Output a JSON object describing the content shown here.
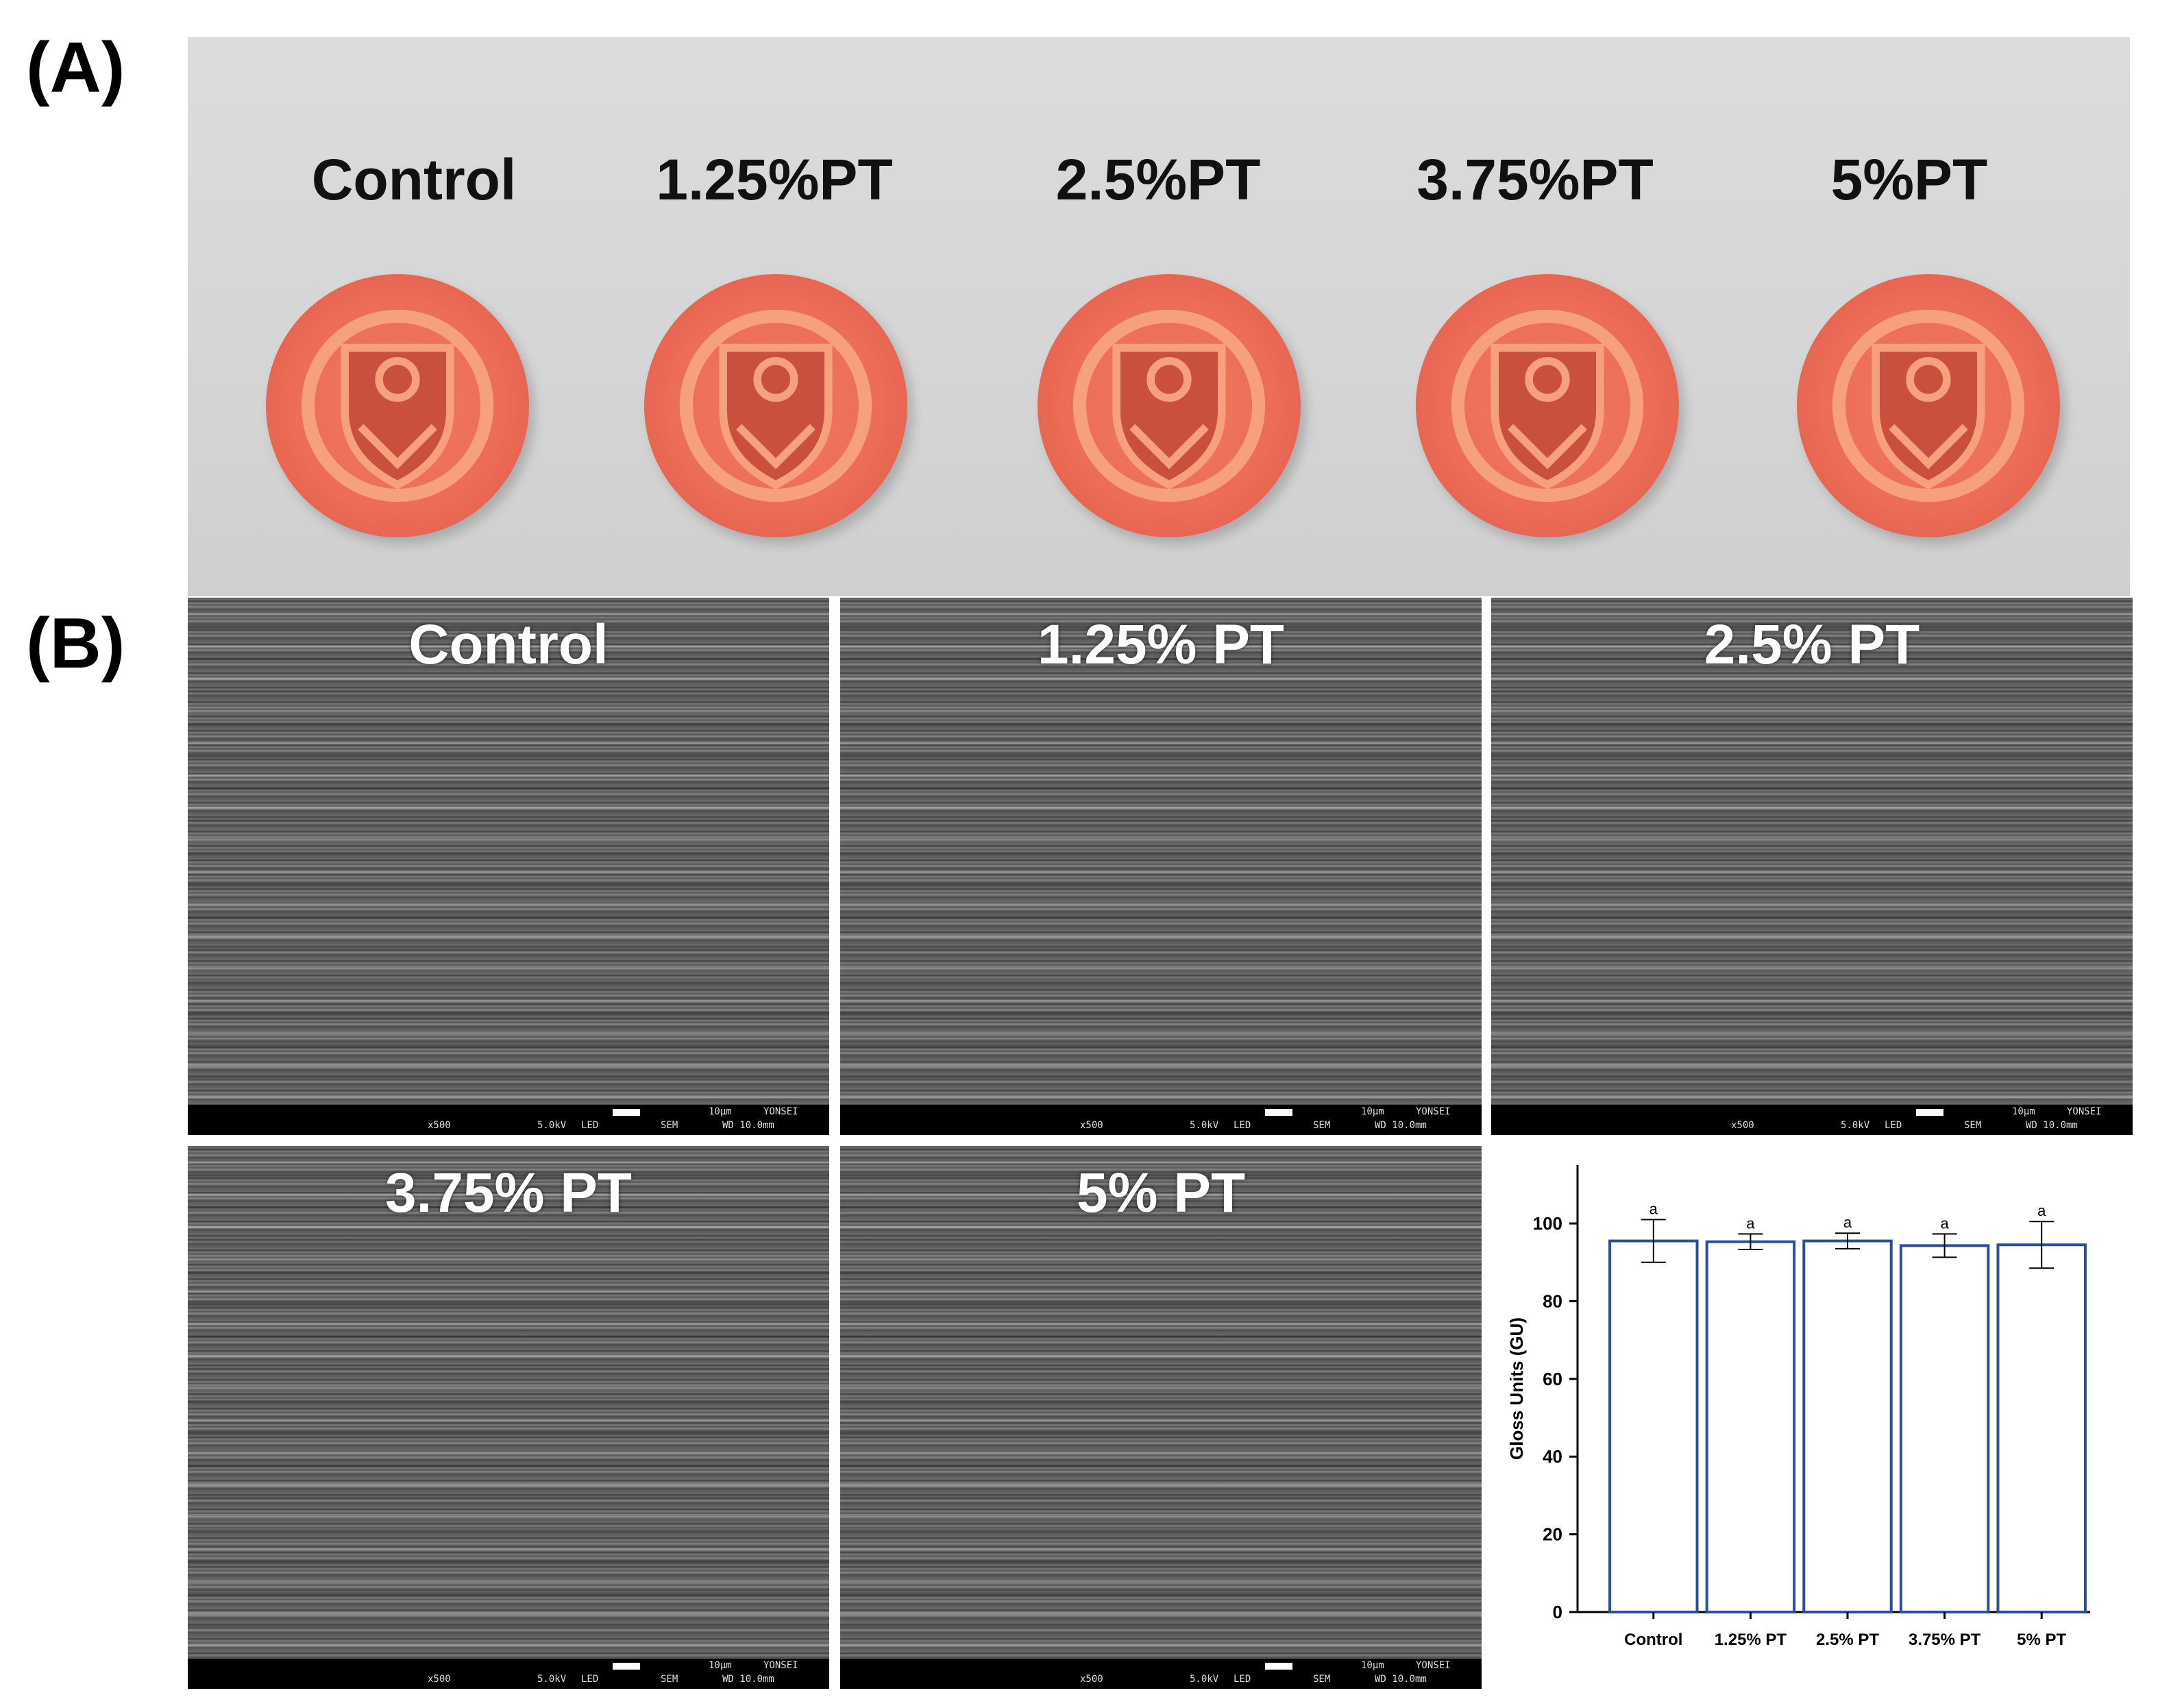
{
  "panels": {
    "a_letter": "(A)",
    "b_letter": "(B)"
  },
  "photo": {
    "labels": [
      "Control",
      "1.25%PT",
      "2.5%PT",
      "3.75%PT",
      "5%PT"
    ]
  },
  "sem": [
    {
      "title": "Control",
      "info": {
        "scale": "10µm",
        "mag": "x500",
        "kv": "5.0kV",
        "det": "LED",
        "mode": "SEM",
        "site": "YONSEI",
        "wd": "WD 10.0mm"
      }
    },
    {
      "title": "1.25% PT",
      "info": {
        "scale": "10µm",
        "mag": "x500",
        "kv": "5.0kV",
        "det": "LED",
        "mode": "SEM",
        "site": "YONSEI",
        "wd": "WD 10.0mm"
      }
    },
    {
      "title": "2.5% PT",
      "info": {
        "scale": "10µm",
        "mag": "x500",
        "kv": "5.0kV",
        "det": "LED",
        "mode": "SEM",
        "site": "YONSEI",
        "wd": "WD 10.0mm"
      }
    },
    {
      "title": "3.75% PT",
      "info": {
        "scale": "10µm",
        "mag": "x500",
        "kv": "5.0kV",
        "det": "LED",
        "mode": "SEM",
        "site": "YONSEI",
        "wd": "WD 10.0mm"
      }
    },
    {
      "title": "5% PT",
      "info": {
        "scale": "10µm",
        "mag": "x500",
        "kv": "5.0kV",
        "det": "LED",
        "mode": "SEM",
        "site": "YONSEI",
        "wd": "WD 10.0mm"
      }
    }
  ],
  "chart_data": {
    "type": "bar",
    "categories": [
      "Control",
      "1.25% PT",
      "2.5% PT",
      "3.75% PT",
      "5% PT"
    ],
    "values": [
      95.5,
      95.3,
      95.5,
      94.3,
      94.5
    ],
    "error": [
      5.5,
      2.0,
      2.0,
      3.0,
      6.0
    ],
    "significance_letters": [
      "a",
      "a",
      "a",
      "a",
      "a"
    ],
    "ylabel": "Gloss Units (GU)",
    "xlabel": "",
    "ylim": [
      0,
      115
    ],
    "yticks": [
      0,
      20,
      40,
      60,
      80,
      100
    ],
    "bar_color": "#2b4fa0",
    "grid": false
  }
}
